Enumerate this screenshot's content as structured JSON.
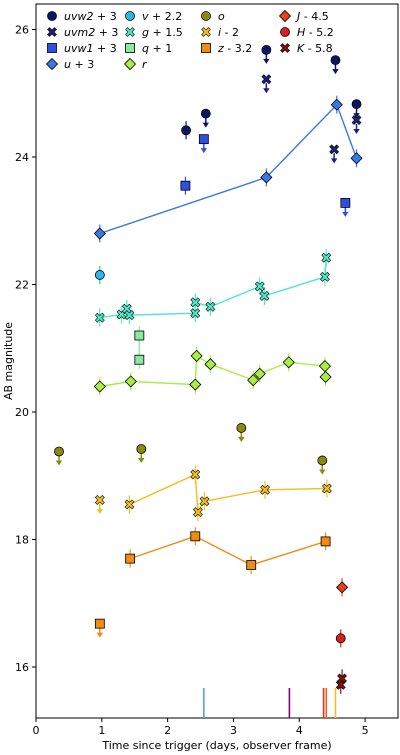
{
  "chart_data": {
    "type": "scatter",
    "title": "",
    "xlabel": "Time since trigger (days, observer frame)",
    "ylabel": "AB magnitude",
    "xlim": [
      0,
      5.5
    ],
    "ylim": [
      26.4,
      15.2
    ],
    "y_inverted": true,
    "xticks": [
      "0",
      "1",
      "2",
      "3",
      "4",
      "5"
    ],
    "yticks": [
      "16",
      "18",
      "20",
      "22",
      "24",
      "26"
    ],
    "legend_placement": "top",
    "grid": false,
    "series": [
      {
        "name": "uvw2 + 3",
        "label": "uvw2",
        "offset": " + 3",
        "color": "#0b1563",
        "marker": "circle",
        "points": [
          [
            2.28,
            24.42
          ]
        ],
        "limits": [
          [
            2.58,
            24.68
          ],
          [
            3.5,
            25.68
          ],
          [
            4.55,
            25.52
          ],
          [
            4.87,
            24.83
          ]
        ]
      },
      {
        "name": "uvm2 + 3",
        "label": "uvm2",
        "offset": " + 3",
        "color": "#1d2078",
        "marker": "x",
        "points": [],
        "limits": [
          [
            3.5,
            25.22
          ],
          [
            4.53,
            24.12
          ],
          [
            4.87,
            24.58
          ]
        ]
      },
      {
        "name": "uvw1 + 3",
        "label": "uvw1",
        "offset": " + 3",
        "color": "#2f4fe0",
        "marker": "square",
        "points": [
          [
            2.27,
            23.55
          ]
        ],
        "limits": [
          [
            2.55,
            24.28
          ],
          [
            4.7,
            23.28
          ]
        ]
      },
      {
        "name": "u + 3",
        "label": "u",
        "offset": " + 3",
        "color": "#3a78e8",
        "marker": "diamond",
        "connected": true,
        "points": [
          [
            0.97,
            22.8
          ],
          [
            3.5,
            23.68
          ],
          [
            4.57,
            24.82
          ],
          [
            4.87,
            23.98
          ]
        ]
      },
      {
        "name": "v + 2.2",
        "label": "v",
        "offset": " + 2.2",
        "color": "#29b8e8",
        "marker": "circle",
        "points": [
          [
            0.97,
            22.15
          ]
        ],
        "limits": []
      },
      {
        "name": "g + 1.5",
        "label": "g",
        "offset": " + 1.5",
        "color": "#50e8c8",
        "marker": "x",
        "connected": true,
        "points": [
          [
            0.97,
            21.48
          ],
          [
            1.3,
            21.53
          ],
          [
            1.38,
            21.62
          ],
          [
            1.42,
            21.52
          ],
          [
            2.42,
            21.55
          ],
          [
            2.42,
            21.72
          ],
          [
            2.65,
            21.65
          ],
          [
            3.4,
            21.97
          ],
          [
            3.47,
            21.82
          ],
          [
            4.39,
            22.12
          ],
          [
            4.41,
            22.42
          ]
        ]
      },
      {
        "name": "q + 1",
        "label": "q",
        "offset": " + 1",
        "color": "#8ae8a0",
        "marker": "square",
        "connected": true,
        "points": [
          [
            1.57,
            20.82
          ],
          [
            1.57,
            21.2
          ]
        ]
      },
      {
        "name": "r",
        "label": "r",
        "offset": "",
        "color": "#a8ee44",
        "marker": "diamond",
        "connected": true,
        "points": [
          [
            0.97,
            20.4
          ],
          [
            1.44,
            20.48
          ],
          [
            2.42,
            20.43
          ],
          [
            2.44,
            20.88
          ],
          [
            2.65,
            20.75
          ],
          [
            3.3,
            20.5
          ],
          [
            3.4,
            20.6
          ],
          [
            3.84,
            20.78
          ],
          [
            4.39,
            20.72
          ],
          [
            4.4,
            20.55
          ]
        ]
      },
      {
        "name": "o",
        "label": "o",
        "offset": "",
        "color": "#8a8a12",
        "marker": "circle",
        "points": [],
        "limits": [
          [
            0.35,
            19.38
          ],
          [
            1.6,
            19.42
          ],
          [
            3.12,
            19.75
          ],
          [
            4.35,
            19.24
          ]
        ]
      },
      {
        "name": "i - 2",
        "label": "i",
        "offset": " - 2",
        "color": "#f0c020",
        "marker": "x",
        "connected": true,
        "points": [
          [
            1.42,
            18.55
          ],
          [
            2.42,
            19.02
          ],
          [
            2.46,
            18.43
          ],
          [
            2.56,
            18.6
          ],
          [
            3.48,
            18.78
          ],
          [
            4.42,
            18.8
          ]
        ],
        "limits": [
          [
            0.97,
            18.62
          ]
        ]
      },
      {
        "name": "z - 3.2",
        "label": "z",
        "offset": " - 3.2",
        "color": "#f08c14",
        "marker": "square",
        "connected": true,
        "points": [
          [
            1.43,
            17.7
          ],
          [
            2.42,
            18.05
          ],
          [
            3.27,
            17.6
          ],
          [
            4.4,
            17.97
          ]
        ],
        "limits": [
          [
            0.97,
            16.68
          ]
        ]
      },
      {
        "name": "J - 4.5",
        "label": "J",
        "offset": " - 4.5",
        "color": "#e84218",
        "marker": "diamond",
        "points": [
          [
            4.65,
            17.25
          ]
        ]
      },
      {
        "name": "H - 5.2",
        "label": "H",
        "offset": " - 5.2",
        "color": "#d82020",
        "marker": "circle",
        "points": [
          [
            4.63,
            16.45
          ]
        ]
      },
      {
        "name": "K - 5.8",
        "label": "K",
        "offset": " - 5.8",
        "color": "#801010",
        "marker": "x",
        "points": [
          [
            4.63,
            15.72
          ],
          [
            4.65,
            15.82
          ]
        ]
      }
    ],
    "vertical_markers": [
      {
        "x": 2.55,
        "color": "#4ea4e8"
      },
      {
        "x": 3.85,
        "color": "#800080"
      },
      {
        "x": 4.37,
        "color": "#e03020"
      },
      {
        "x": 4.41,
        "color": "#f06018"
      },
      {
        "x": 4.55,
        "color": "#f0c020"
      }
    ]
  }
}
